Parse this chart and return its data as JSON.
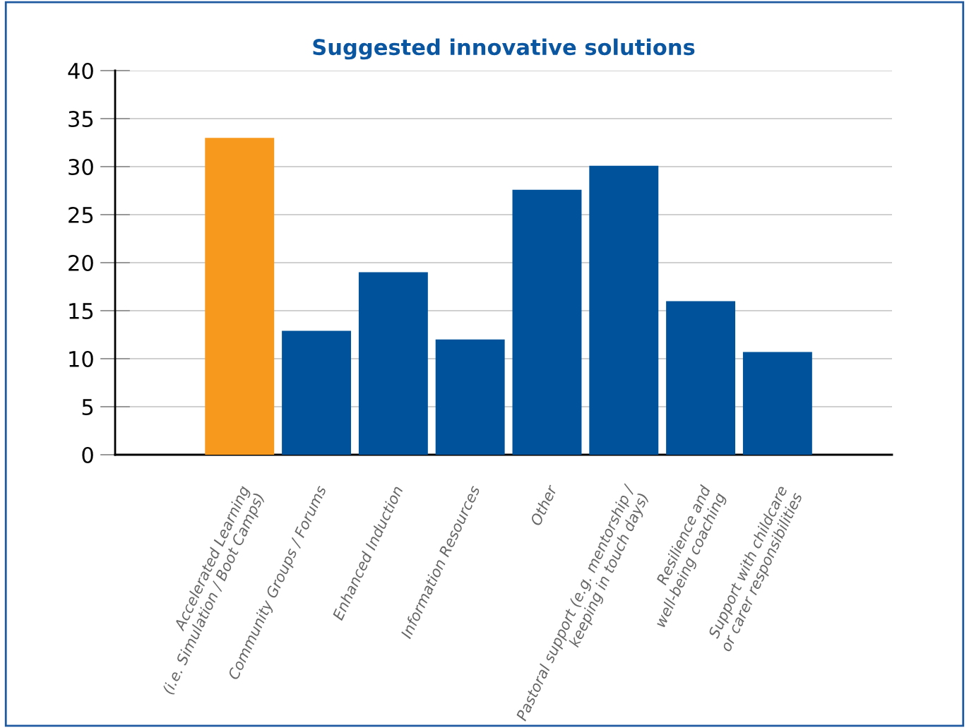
{
  "chart_data": {
    "type": "bar",
    "title": "Suggested innovative solutions",
    "categories": [
      "Accelerated Learning\n(i.e. Simulation / Boot Camps)",
      "Community Groups / Forums",
      "Enhanced Induction",
      "Information Resources",
      "Other",
      "Pastoral support (e.g. mentorship /\nkeeping in touch days)",
      "Resilience and\nwell-being coaching",
      "Support with childcare\nor carer responsibilities"
    ],
    "values": [
      33,
      12.9,
      19,
      12,
      27.6,
      30.1,
      16,
      10.7
    ],
    "colors": [
      "#f7991c",
      "#00529b",
      "#00529b",
      "#00529b",
      "#00529b",
      "#00529b",
      "#00529b",
      "#00529b"
    ],
    "ylim": [
      0,
      40
    ],
    "yticks": [
      0,
      5,
      10,
      15,
      20,
      25,
      30,
      35,
      40
    ],
    "grid": "y"
  }
}
